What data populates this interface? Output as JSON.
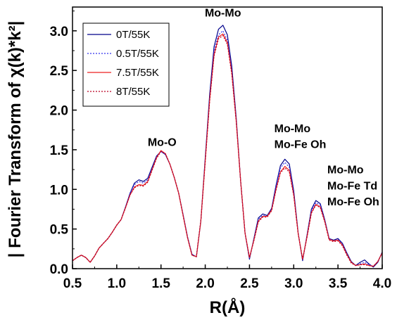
{
  "chart_data": {
    "type": "line",
    "xlabel": "R(Å)",
    "ylabel": "| Fourier Transform of χ(k)*k²|",
    "xlim": [
      0.5,
      4.0
    ],
    "ylim": [
      0.0,
      3.3
    ],
    "xticks": [
      "0.5",
      "1.0",
      "1.5",
      "2.0",
      "2.5",
      "3.0",
      "3.5",
      "4.0"
    ],
    "xtick_values": [
      0.5,
      1.0,
      1.5,
      2.0,
      2.5,
      3.0,
      3.5,
      4.0
    ],
    "yticks": [
      "0.0",
      "0.5",
      "1.0",
      "1.5",
      "2.0",
      "2.5",
      "3.0"
    ],
    "ytick_values": [
      0.0,
      0.5,
      1.0,
      1.5,
      2.0,
      2.5,
      3.0
    ],
    "grid": false,
    "legend_position": "top-left",
    "annotations": [
      {
        "text": "Mo-Mo",
        "x": 2.2,
        "y": 3.18
      },
      {
        "text": "Mo-O",
        "x": 1.35,
        "y": 1.55
      },
      {
        "text": "Mo-Mo",
        "x": 2.78,
        "y": 1.72
      },
      {
        "text": "Mo-Fe Oh",
        "x": 2.78,
        "y": 1.52
      },
      {
        "text": "Mo-Mo",
        "x": 3.38,
        "y": 1.2
      },
      {
        "text": "Mo-Fe Td",
        "x": 3.38,
        "y": 1.0
      },
      {
        "text": "Mo-Fe Oh",
        "x": 3.38,
        "y": 0.8
      }
    ],
    "x": [
      0.5,
      0.55,
      0.6,
      0.65,
      0.7,
      0.75,
      0.8,
      0.85,
      0.9,
      0.95,
      1.0,
      1.05,
      1.1,
      1.15,
      1.2,
      1.25,
      1.3,
      1.35,
      1.4,
      1.45,
      1.5,
      1.55,
      1.6,
      1.65,
      1.7,
      1.75,
      1.8,
      1.85,
      1.9,
      1.95,
      2.0,
      2.05,
      2.1,
      2.15,
      2.2,
      2.25,
      2.3,
      2.35,
      2.4,
      2.45,
      2.5,
      2.55,
      2.6,
      2.65,
      2.7,
      2.75,
      2.8,
      2.85,
      2.9,
      2.95,
      3.0,
      3.05,
      3.1,
      3.15,
      3.2,
      3.25,
      3.3,
      3.35,
      3.4,
      3.45,
      3.5,
      3.55,
      3.6,
      3.65,
      3.7,
      3.75,
      3.8,
      3.85,
      3.9,
      3.95,
      4.0
    ],
    "series": [
      {
        "name": "0T/55K",
        "color": "#00008B",
        "dash": "solid",
        "values": [
          0.1,
          0.14,
          0.17,
          0.14,
          0.08,
          0.16,
          0.26,
          0.32,
          0.38,
          0.46,
          0.55,
          0.62,
          0.78,
          0.95,
          1.08,
          1.12,
          1.1,
          1.14,
          1.28,
          1.42,
          1.48,
          1.44,
          1.32,
          1.15,
          0.95,
          0.68,
          0.4,
          0.18,
          0.15,
          0.6,
          1.4,
          2.2,
          2.8,
          3.02,
          3.07,
          2.95,
          2.55,
          1.9,
          1.1,
          0.45,
          0.12,
          0.38,
          0.64,
          0.69,
          0.67,
          0.76,
          1.05,
          1.3,
          1.38,
          1.32,
          0.98,
          0.45,
          0.1,
          0.42,
          0.75,
          0.86,
          0.82,
          0.62,
          0.38,
          0.36,
          0.38,
          0.32,
          0.2,
          0.09,
          0.04,
          0.08,
          0.11,
          0.06,
          0.02,
          0.08,
          0.21
        ]
      },
      {
        "name": "0.5T/55K",
        "color": "#3333EE",
        "dash": "dotted",
        "values": [
          0.1,
          0.14,
          0.17,
          0.14,
          0.08,
          0.16,
          0.26,
          0.32,
          0.38,
          0.46,
          0.55,
          0.62,
          0.78,
          0.95,
          1.06,
          1.1,
          1.08,
          1.12,
          1.26,
          1.41,
          1.48,
          1.44,
          1.32,
          1.15,
          0.95,
          0.68,
          0.4,
          0.18,
          0.15,
          0.6,
          1.38,
          2.16,
          2.74,
          2.95,
          3.0,
          2.88,
          2.5,
          1.88,
          1.1,
          0.45,
          0.13,
          0.37,
          0.62,
          0.67,
          0.66,
          0.75,
          1.03,
          1.27,
          1.34,
          1.28,
          0.96,
          0.45,
          0.11,
          0.41,
          0.73,
          0.83,
          0.8,
          0.61,
          0.38,
          0.35,
          0.37,
          0.31,
          0.19,
          0.08,
          0.04,
          0.06,
          0.08,
          0.05,
          0.03,
          0.09,
          0.2
        ]
      },
      {
        "name": "7.5T/55K",
        "color": "#EE2222",
        "dash": "solid",
        "values": [
          0.1,
          0.14,
          0.17,
          0.14,
          0.08,
          0.16,
          0.26,
          0.32,
          0.38,
          0.46,
          0.55,
          0.62,
          0.77,
          0.93,
          1.03,
          1.06,
          1.05,
          1.1,
          1.25,
          1.4,
          1.49,
          1.45,
          1.32,
          1.15,
          0.95,
          0.67,
          0.39,
          0.17,
          0.15,
          0.6,
          1.36,
          2.13,
          2.7,
          2.92,
          2.96,
          2.85,
          2.47,
          1.86,
          1.1,
          0.45,
          0.14,
          0.36,
          0.6,
          0.66,
          0.66,
          0.74,
          1.0,
          1.22,
          1.29,
          1.24,
          0.93,
          0.44,
          0.12,
          0.4,
          0.71,
          0.81,
          0.78,
          0.6,
          0.37,
          0.35,
          0.36,
          0.3,
          0.18,
          0.08,
          0.04,
          0.05,
          0.06,
          0.04,
          0.03,
          0.09,
          0.2
        ]
      },
      {
        "name": "8T/55K",
        "color": "#BB0022",
        "dash": "dotted",
        "values": [
          0.1,
          0.14,
          0.17,
          0.14,
          0.08,
          0.16,
          0.26,
          0.32,
          0.38,
          0.46,
          0.55,
          0.62,
          0.77,
          0.93,
          1.02,
          1.05,
          1.04,
          1.09,
          1.24,
          1.39,
          1.48,
          1.45,
          1.32,
          1.15,
          0.95,
          0.67,
          0.39,
          0.17,
          0.15,
          0.6,
          1.35,
          2.12,
          2.68,
          2.9,
          2.94,
          2.83,
          2.45,
          1.85,
          1.1,
          0.45,
          0.14,
          0.35,
          0.59,
          0.65,
          0.65,
          0.73,
          0.99,
          1.21,
          1.27,
          1.22,
          0.92,
          0.44,
          0.12,
          0.39,
          0.7,
          0.8,
          0.77,
          0.59,
          0.36,
          0.34,
          0.35,
          0.29,
          0.17,
          0.07,
          0.04,
          0.05,
          0.05,
          0.04,
          0.03,
          0.09,
          0.2
        ]
      }
    ]
  }
}
